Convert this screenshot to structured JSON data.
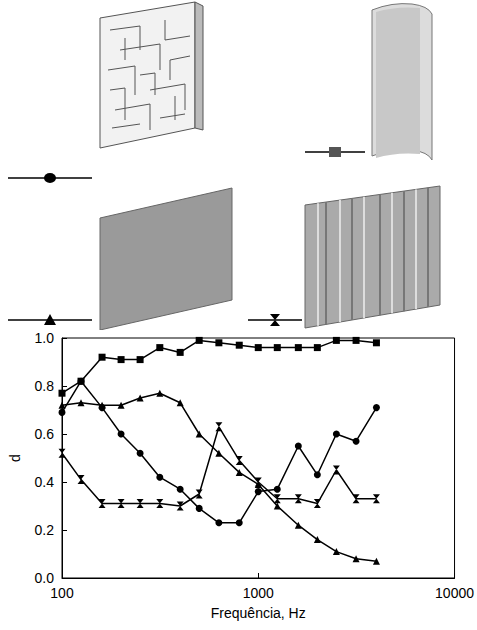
{
  "chart_data": {
    "type": "line",
    "x_label": "Frequência, Hz",
    "y_label": "d",
    "log": "x",
    "grid": false,
    "color": "#000000",
    "x": [
      100,
      125,
      160,
      200,
      250,
      315,
      400,
      500,
      630,
      800,
      1000,
      1250,
      1600,
      2000,
      2500,
      3150,
      4000
    ],
    "xlim": [
      100,
      10000
    ],
    "xticks": [
      100,
      1000,
      10000
    ],
    "ylim": [
      0,
      1
    ],
    "yticks": [
      {
        "value": 0,
        "label": "0.0"
      },
      0.2,
      0.4,
      0.6,
      0.8,
      {
        "value": 1,
        "label": "1.0"
      }
    ],
    "series": [
      {
        "marker": "circle",
        "values": [
          0.69,
          0.82,
          0.71,
          0.6,
          0.52,
          0.42,
          0.37,
          0.29,
          0.23,
          0.23,
          0.36,
          0.37,
          0.55,
          0.43,
          0.6,
          0.57,
          0.71
        ]
      },
      {
        "marker": "square",
        "values": [
          0.77,
          0.82,
          0.92,
          0.91,
          0.91,
          0.96,
          0.94,
          0.99,
          0.98,
          0.97,
          0.96,
          0.96,
          0.96,
          0.96,
          0.99,
          0.99,
          0.98
        ]
      },
      {
        "marker": "triangle",
        "values": [
          0.72,
          0.73,
          0.72,
          0.72,
          0.75,
          0.77,
          0.73,
          0.6,
          0.52,
          0.44,
          0.39,
          0.3,
          0.22,
          0.16,
          0.11,
          0.08,
          0.07
        ]
      },
      {
        "marker": "hourglass",
        "values": [
          0.52,
          0.41,
          0.31,
          0.31,
          0.31,
          0.31,
          0.3,
          0.35,
          0.63,
          0.49,
          0.4,
          0.33,
          0.33,
          0.31,
          0.45,
          0.33,
          0.33
        ]
      }
    ]
  }
}
